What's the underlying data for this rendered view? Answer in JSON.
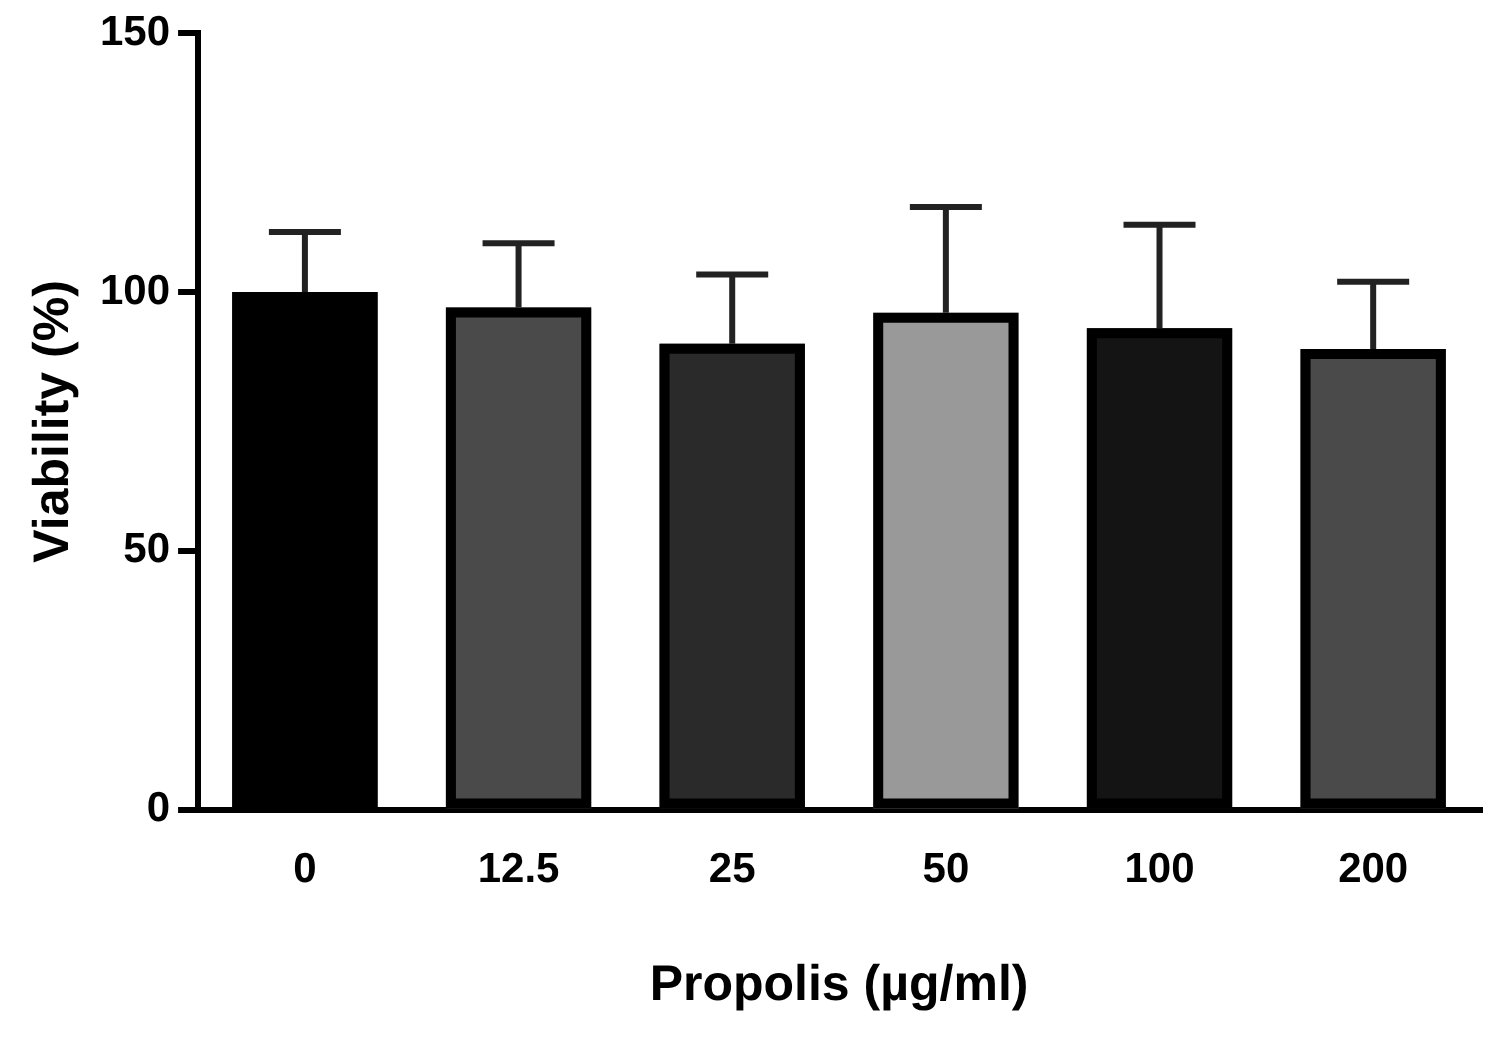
{
  "chart_data": {
    "type": "bar",
    "xlabel": "Propolis (µg/ml)",
    "ylabel": "Viability (%)",
    "categories": [
      "0",
      "12.5",
      "25",
      "50",
      "100",
      "200"
    ],
    "values": [
      100,
      97,
      90,
      96,
      93,
      89
    ],
    "errors": [
      [
        100,
        111.6
      ],
      [
        97,
        109.4
      ],
      [
        90,
        103.4
      ],
      [
        96,
        116.4
      ],
      [
        93,
        113
      ],
      [
        89,
        102
      ]
    ],
    "colors": [
      "#000000",
      "#4a4a4a",
      "#2a2a2a",
      "#999999",
      "#141414",
      "#4a4a4a"
    ],
    "ylim": [
      0,
      150
    ],
    "yticks": [
      0,
      50,
      100,
      150
    ],
    "grid": false,
    "legend": false
  }
}
